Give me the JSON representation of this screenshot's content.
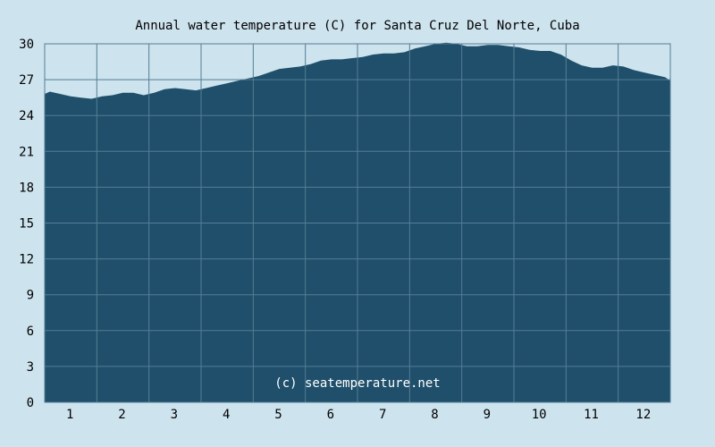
{
  "colors": {
    "background": "#cde3ee",
    "area_fill": "#1f4f6b",
    "grid": "#557d96",
    "text": "#000000",
    "watermark_text": "#ffffff"
  },
  "watermark": "(c) seatemperature.net",
  "chart_data": {
    "type": "area",
    "title": "Annual water temperature (C) for Santa Cruz Del Norte, Cuba",
    "xlabel": "",
    "ylabel": "",
    "categories": [
      "1",
      "2",
      "3",
      "4",
      "5",
      "6",
      "7",
      "8",
      "9",
      "10",
      "11",
      "12"
    ],
    "y_ticks": [
      "0",
      "3",
      "6",
      "9",
      "12",
      "15",
      "18",
      "21",
      "24",
      "27",
      "30"
    ],
    "ylim": [
      0,
      30
    ],
    "grid": true,
    "x": [
      0.5,
      0.6,
      0.8,
      1.0,
      1.2,
      1.4,
      1.6,
      1.8,
      2.0,
      2.2,
      2.4,
      2.6,
      2.8,
      3.0,
      3.2,
      3.4,
      3.6,
      3.8,
      4.0,
      4.2,
      4.4,
      4.6,
      4.8,
      5.0,
      5.2,
      5.4,
      5.6,
      5.8,
      6.0,
      6.2,
      6.4,
      6.6,
      6.8,
      7.0,
      7.2,
      7.4,
      7.6,
      7.8,
      8.0,
      8.2,
      8.4,
      8.6,
      8.8,
      9.0,
      9.2,
      9.4,
      9.6,
      9.8,
      10.0,
      10.2,
      10.4,
      10.6,
      10.8,
      11.0,
      11.2,
      11.4,
      11.6,
      11.8,
      12.0,
      12.2,
      12.4,
      12.5
    ],
    "values": [
      25.8,
      26.0,
      25.8,
      25.6,
      25.5,
      25.4,
      25.6,
      25.7,
      25.9,
      25.9,
      25.7,
      25.9,
      26.2,
      26.3,
      26.2,
      26.1,
      26.3,
      26.5,
      26.7,
      26.9,
      27.1,
      27.3,
      27.6,
      27.9,
      28.0,
      28.1,
      28.3,
      28.6,
      28.7,
      28.7,
      28.8,
      28.9,
      29.1,
      29.2,
      29.2,
      29.3,
      29.6,
      29.8,
      30.0,
      30.1,
      30.0,
      29.8,
      29.8,
      29.9,
      29.9,
      29.8,
      29.7,
      29.5,
      29.4,
      29.4,
      29.1,
      28.6,
      28.2,
      28.0,
      28.0,
      28.2,
      28.1,
      27.8,
      27.6,
      27.4,
      27.2,
      26.9
    ]
  }
}
